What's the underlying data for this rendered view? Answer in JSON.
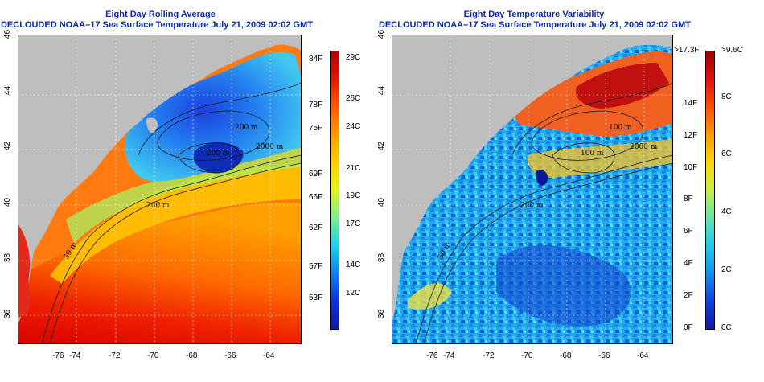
{
  "left_panel": {
    "title": "Eight Day Rolling Average",
    "subtitle": "DECLOUDED NOAA–17 Sea Surface Temperature July 21, 2009 02:02 GMT",
    "lat_ticks": [
      "46",
      "44",
      "42",
      "40",
      "38",
      "36"
    ],
    "lon_ticks": [
      "-76",
      "-74",
      "-72",
      "-70",
      "-68",
      "-66",
      "-64"
    ],
    "contours": [
      "200 m",
      "2000 m",
      "200 m",
      "200 m",
      "50 m"
    ],
    "colorbar": {
      "gradient": [
        "#ffe6e6",
        "#cc0000",
        "#ff3300",
        "#ff8800",
        "#ffcc00",
        "#e8f020",
        "#80f090",
        "#20d8e8",
        "#1090f0",
        "#1030d0",
        "#101898"
      ],
      "fahrenheit": [
        {
          "label": "84F",
          "f": 84
        },
        {
          "label": "78F",
          "f": 78
        },
        {
          "label": "75F",
          "f": 75
        },
        {
          "label": "69F",
          "f": 69
        },
        {
          "label": "66F",
          "f": 66
        },
        {
          "label": "62F",
          "f": 62
        },
        {
          "label": "57F",
          "f": 57
        },
        {
          "label": "53F",
          "f": 53
        }
      ],
      "celsius": [
        {
          "label": "29C",
          "c": 29
        },
        {
          "label": "26C",
          "c": 26
        },
        {
          "label": "24C",
          "c": 24
        },
        {
          "label": "21C",
          "c": 21
        },
        {
          "label": "19C",
          "c": 19
        },
        {
          "label": "17C",
          "c": 17
        },
        {
          "label": "14C",
          "c": 14
        },
        {
          "label": "12C",
          "c": 12
        }
      ]
    }
  },
  "right_panel": {
    "title": "Eight Day Temperature Variability",
    "subtitle": "DECLOUDED NOAA–17 Sea Surface Temperature July 21, 2009 02:02 GMT",
    "lat_ticks": [
      "46",
      "44",
      "42",
      "40",
      "38",
      "36"
    ],
    "lon_ticks": [
      "-76",
      "-74",
      "-72",
      "-70",
      "-68",
      "-66",
      "-64"
    ],
    "contours": [
      "100 m",
      "2000 m",
      "100 m",
      "200 m",
      "50 m"
    ],
    "colorbar": {
      "fahrenheit": [
        {
          "label": ">17.3F",
          "v": 17.3
        },
        {
          "label": "14F",
          "v": 14
        },
        {
          "label": "12F",
          "v": 12
        },
        {
          "label": "10F",
          "v": 10
        },
        {
          "label": "8F",
          "v": 8
        },
        {
          "label": "6F",
          "v": 6
        },
        {
          "label": "4F",
          "v": 4
        },
        {
          "label": "2F",
          "v": 2
        },
        {
          "label": "0F",
          "v": 0
        }
      ],
      "celsius": [
        {
          "label": ">9.6C",
          "v": 9.6
        },
        {
          "label": "8C",
          "v": 8
        },
        {
          "label": "6C",
          "v": 6
        },
        {
          "label": "4C",
          "v": 4
        },
        {
          "label": "2C",
          "v": 2
        },
        {
          "label": "0C",
          "v": 0
        }
      ]
    }
  },
  "colors": {
    "title": "#0b2aa8",
    "land": "#bebebe",
    "contour": "#1a1a1a"
  }
}
